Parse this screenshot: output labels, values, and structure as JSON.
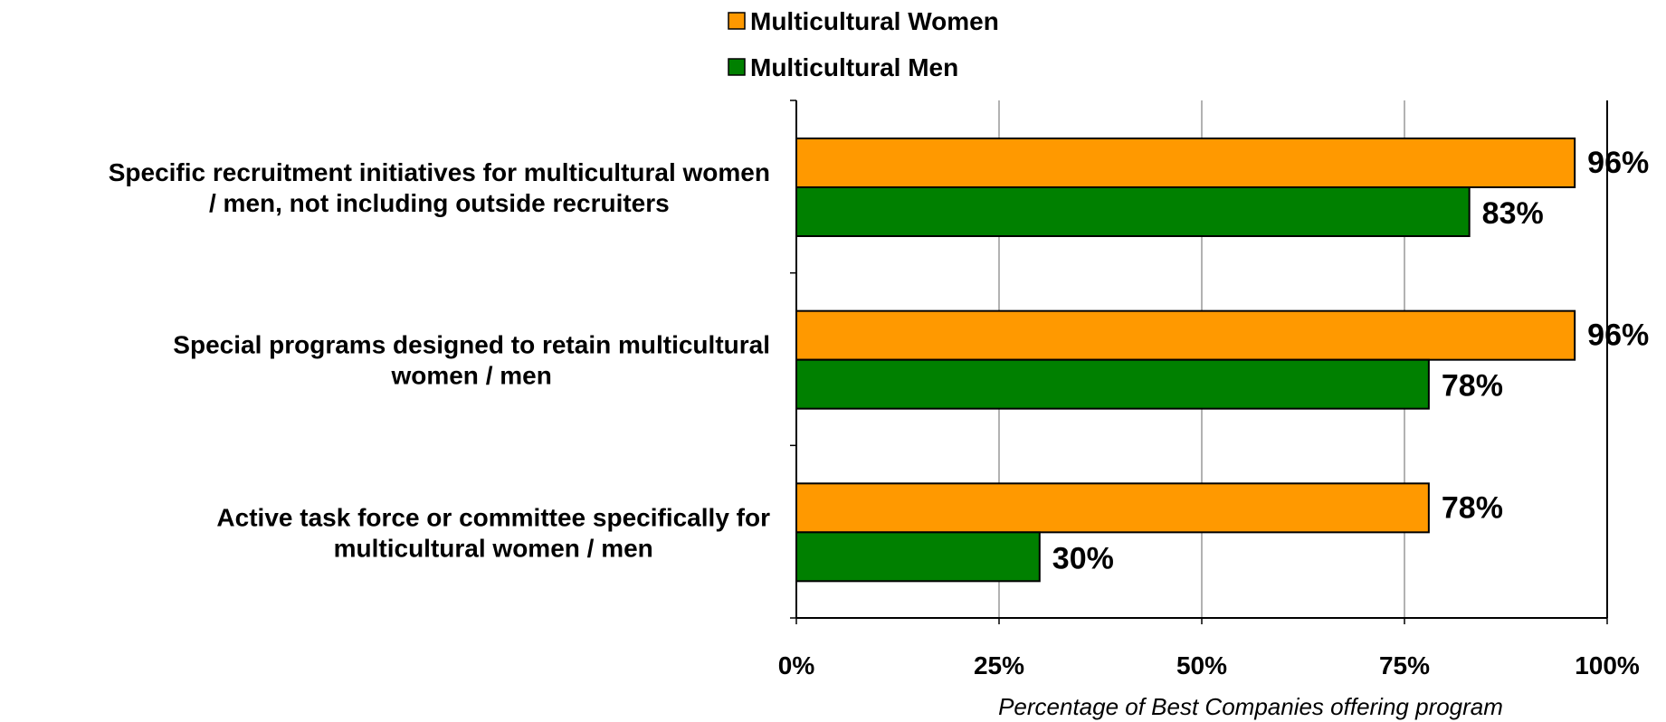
{
  "chart_data": {
    "type": "bar",
    "orientation": "horizontal",
    "categories": [
      "Specific recruitment initiatives for multicultural women / men, not including outside recruiters",
      "Special programs designed to retain multicultural women / men",
      "Active task force or committee specifically for multicultural women / men"
    ],
    "series": [
      {
        "name": "Multicultural Women",
        "color": "#ff9900",
        "values": [
          96,
          96,
          78
        ],
        "labels": [
          "96%",
          "96%",
          "78%"
        ]
      },
      {
        "name": "Multicultural Men",
        "color": "#008000",
        "values": [
          83,
          78,
          30
        ],
        "labels": [
          "83%",
          "78%",
          "30%"
        ]
      }
    ],
    "xlim": [
      0,
      100
    ],
    "xticks": [
      0,
      25,
      50,
      75,
      100
    ],
    "xtick_labels": [
      "0%",
      "25%",
      "50%",
      "75%",
      "100%"
    ],
    "xlabel": "Percentage of Best Companies offering program",
    "ylabel": "",
    "title": "",
    "grid": "vertical",
    "legend": "top"
  }
}
